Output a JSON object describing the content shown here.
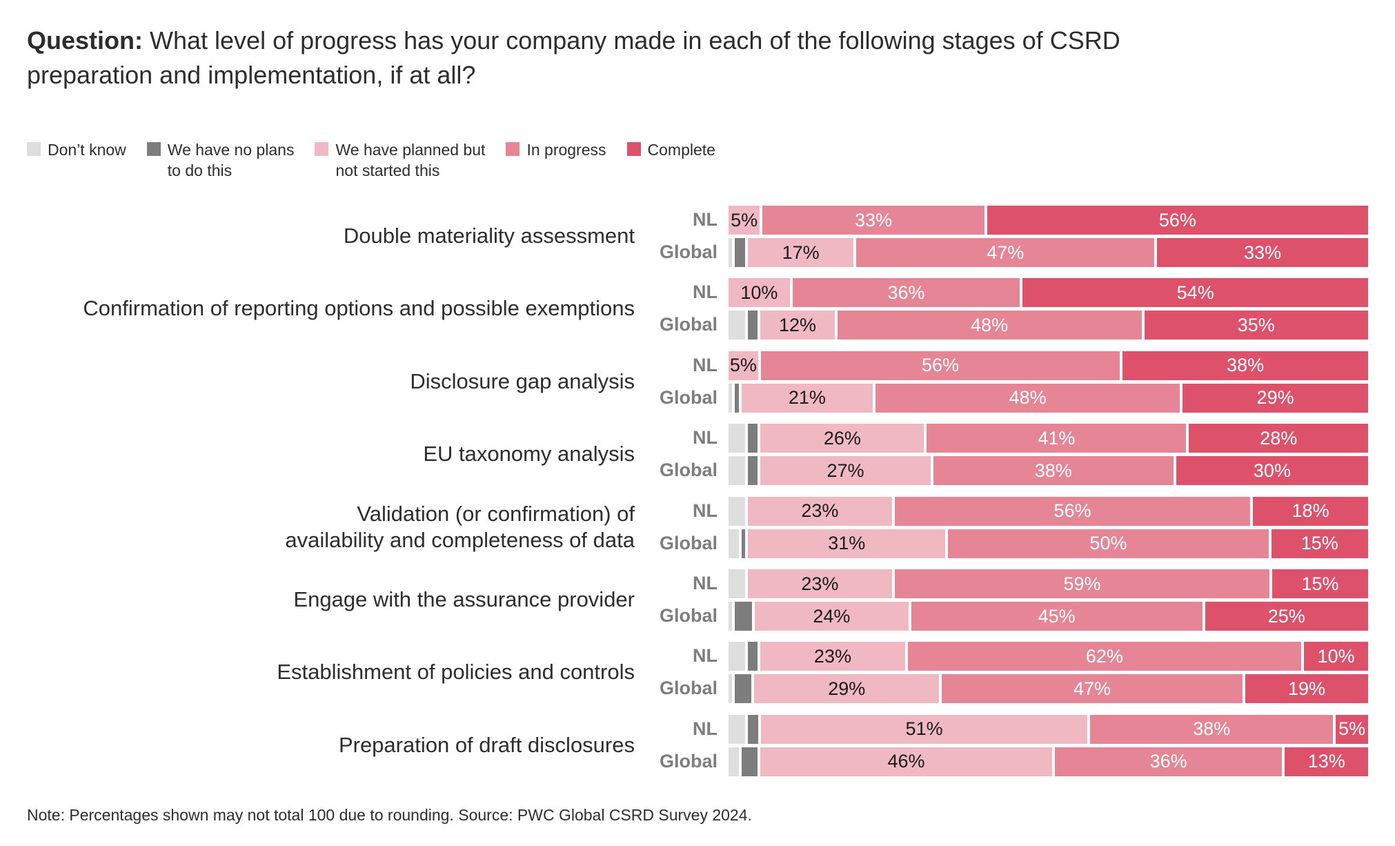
{
  "title": {
    "prefix": "Question:",
    "text": " What level of progress has your company made in each of the following stages of CSRD preparation and implementation, if at all?"
  },
  "note": "Note: Percentages shown may not total 100 due to rounding. Source: PWC Global CSRD Survey 2024.",
  "chart_data": {
    "type": "bar",
    "orientation": "horizontal",
    "stacked": true,
    "series": [
      {
        "name": "Don’t know",
        "color": "#dedede"
      },
      {
        "name": "We have no plans to do this",
        "color": "#7d7d7d"
      },
      {
        "name": "We have planned but not started this",
        "color": "#f0b8c2"
      },
      {
        "name": "In progress",
        "color": "#e68595"
      },
      {
        "name": "Complete",
        "color": "#de516b"
      }
    ],
    "legend_placement": "top-left",
    "groups": [
      "NL",
      "Global"
    ],
    "categories": [
      {
        "label": "Double materiality assessment",
        "NL": [
          0,
          0,
          5,
          33,
          56
        ],
        "Global": [
          1,
          2,
          17,
          47,
          33
        ]
      },
      {
        "label": "Confirmation of reporting options and possible exemptions",
        "NL": [
          0,
          0,
          10,
          36,
          54
        ],
        "Global": [
          3,
          2,
          12,
          48,
          35
        ]
      },
      {
        "label": "Disclosure gap analysis",
        "NL": [
          0,
          0,
          5,
          56,
          38
        ],
        "Global": [
          1,
          1,
          21,
          48,
          29
        ]
      },
      {
        "label": "EU taxonomy analysis",
        "NL": [
          3,
          2,
          26,
          41,
          28
        ],
        "Global": [
          3,
          2,
          27,
          38,
          30
        ]
      },
      {
        "label": "Validation (or confirmation) of availability and completeness of data",
        "NL": [
          3,
          0,
          23,
          56,
          18
        ],
        "Global": [
          2,
          1,
          31,
          50,
          15
        ]
      },
      {
        "label": "Engage with the assurance provider",
        "NL": [
          3,
          0,
          23,
          59,
          15
        ],
        "Global": [
          1,
          3,
          24,
          45,
          25
        ]
      },
      {
        "label": "Establishment of policies and controls",
        "NL": [
          3,
          2,
          23,
          62,
          10
        ],
        "Global": [
          1,
          3,
          29,
          47,
          19
        ]
      },
      {
        "label": "Preparation of draft disclosures",
        "NL": [
          3,
          2,
          51,
          38,
          5
        ],
        "Global": [
          2,
          3,
          46,
          36,
          13
        ]
      }
    ]
  }
}
